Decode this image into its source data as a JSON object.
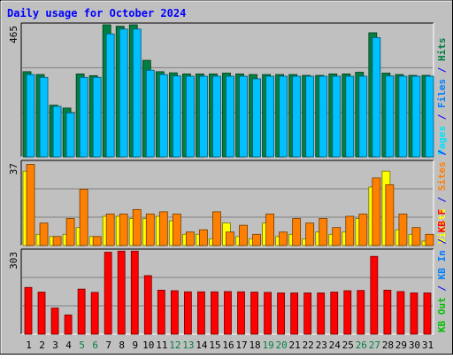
{
  "chart_data": {
    "type": "bar",
    "title": "Daily usage for October 2024",
    "categories": [
      "1",
      "2",
      "3",
      "4",
      "5",
      "6",
      "7",
      "8",
      "9",
      "10",
      "11",
      "12",
      "13",
      "14",
      "15",
      "16",
      "17",
      "18",
      "19",
      "20",
      "21",
      "22",
      "23",
      "24",
      "25",
      "26",
      "27",
      "28",
      "29",
      "30",
      "31"
    ],
    "weekend_days": [
      "5",
      "6",
      "12",
      "13",
      "19",
      "20",
      "26",
      "27"
    ],
    "panels": [
      {
        "id": "hits-files-pages",
        "ymax_label": "465",
        "ylim": [
          0,
          465
        ],
        "series": [
          {
            "name": "Hits",
            "color": "#008040",
            "values": [
              300,
              290,
              182,
              172,
              292,
              286,
              465,
              460,
              465,
              340,
              300,
              296,
              292,
              292,
              292,
              295,
              292,
              290,
              290,
              290,
              290,
              287,
              287,
              292,
              292,
              298,
              437,
              295,
              290,
              287,
              287
            ]
          },
          {
            "name": "Files",
            "color": "#00c0ff",
            "values": [
              290,
              280,
              178,
              155,
              280,
              280,
              433,
              450,
              450,
              305,
              290,
              285,
              284,
              284,
              284,
              284,
              284,
              275,
              284,
              284,
              284,
              284,
              284,
              284,
              284,
              284,
              420,
              285,
              284,
              284,
              284
            ]
          },
          {
            "name": "Pages",
            "color": "#00e0ff",
            "values": []
          }
        ]
      },
      {
        "id": "visits-sites",
        "ymax_label": "37",
        "ylim": [
          0,
          37
        ],
        "series": [
          {
            "name": "Visits",
            "color": "#ffff00",
            "values": [
              33,
              5,
              4,
              5,
              8,
              4,
              13,
              13,
              12,
              12,
              13,
              11,
              5,
              5,
              3,
              10,
              4,
              3,
              10,
              4,
              5,
              3,
              6,
              5,
              6,
              12,
              26,
              33,
              7,
              5,
              2
            ]
          },
          {
            "name": "Sites",
            "color": "#ff8000",
            "values": [
              36,
              10,
              4,
              12,
              25,
              4,
              14,
              14,
              16,
              14,
              15,
              14,
              6,
              7,
              15,
              6,
              9,
              5,
              14,
              6,
              12,
              10,
              12,
              8,
              13,
              14,
              30,
              27,
              14,
              8,
              5
            ]
          }
        ]
      },
      {
        "id": "kbytes",
        "ymax_label": "303",
        "ylim": [
          0,
          303
        ],
        "series": [
          {
            "name": "KB F",
            "color": "#ff0000",
            "values": [
              170,
              153,
              95,
              70,
              164,
              152,
              298,
              302,
              302,
              213,
              160,
              158,
              154,
              154,
              154,
              155,
              154,
              153,
              152,
              150,
              150,
              150,
              150,
              153,
              158,
              159,
              283,
              160,
              155,
              150,
              150
            ]
          }
        ]
      }
    ],
    "legend_right": [
      {
        "text": "Pages",
        "color": "#00e0ff"
      },
      {
        "text": " / ",
        "color": "#0000ff"
      },
      {
        "text": "Files",
        "color": "#0080ff"
      },
      {
        "text": " / ",
        "color": "#0000ff"
      },
      {
        "text": "Hits",
        "color": "#008040"
      },
      {
        "text": "Visits",
        "color": "#ffff00"
      },
      {
        "text": " / ",
        "color": "#0000ff"
      },
      {
        "text": "Sites",
        "color": "#ff8000"
      },
      {
        "text": " / ",
        "color": "#0000ff"
      },
      {
        "text": "KB Out",
        "color": "#00c000"
      },
      {
        "text": " / ",
        "color": "#0000ff"
      },
      {
        "text": "KB In",
        "color": "#0080ff"
      },
      {
        "text": " / ",
        "color": "#0000ff"
      },
      {
        "text": "KB F",
        "color": "#ff0000"
      }
    ]
  }
}
